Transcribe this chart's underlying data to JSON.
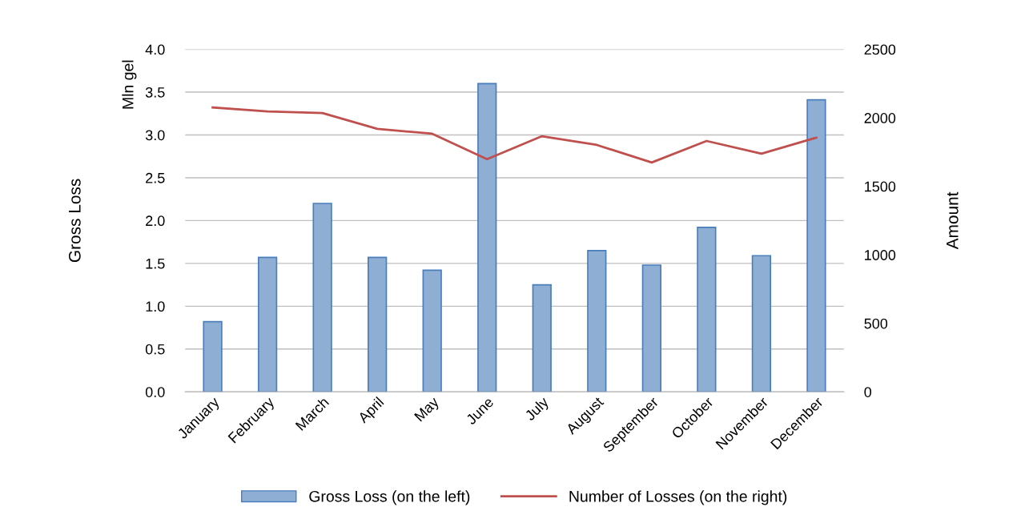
{
  "chart_data": {
    "type": "bar",
    "ylabel": "Gross Loss",
    "y2label": "Amount",
    "annotations": [
      "Mln gel"
    ],
    "categories": [
      "January",
      "February",
      "March",
      "April",
      "May",
      "June",
      "July",
      "August",
      "September",
      "October",
      "November",
      "December"
    ],
    "series": [
      {
        "name": "Gross Loss (on the left)",
        "color": "#8faed4",
        "values": [
          0.82,
          1.57,
          2.2,
          1.57,
          1.42,
          3.6,
          1.25,
          1.65,
          1.48,
          1.92,
          1.59,
          3.41
        ]
      },
      {
        "name": "Number of Losses (on the right)",
        "type": "line",
        "axis": "y2",
        "color": "#c0504d",
        "values": [
          2076,
          2047,
          2035,
          1919,
          1884,
          1698,
          1866,
          1802,
          1674,
          1831,
          1738,
          1855
        ]
      }
    ],
    "ylim": [
      0,
      4
    ],
    "yticks": [
      {
        "value": 0,
        "label": "0.0"
      },
      {
        "value": 0.5,
        "label": "0.5"
      },
      {
        "value": 1,
        "label": "1.0"
      },
      {
        "value": 1.5,
        "label": "1.5"
      },
      {
        "value": 2,
        "label": "2.0"
      },
      {
        "value": 2.5,
        "label": "2.5"
      },
      {
        "value": 3,
        "label": "3.0"
      },
      {
        "value": 3.5,
        "label": "3.5"
      },
      {
        "value": 4,
        "label": "4.0"
      }
    ],
    "y2lim": [
      0,
      2500
    ],
    "y2ticks": [
      0,
      500,
      1000,
      1500,
      2000,
      2500
    ],
    "grid": "y",
    "legend": "bottom",
    "marker": "none",
    "line_style": "solid"
  }
}
